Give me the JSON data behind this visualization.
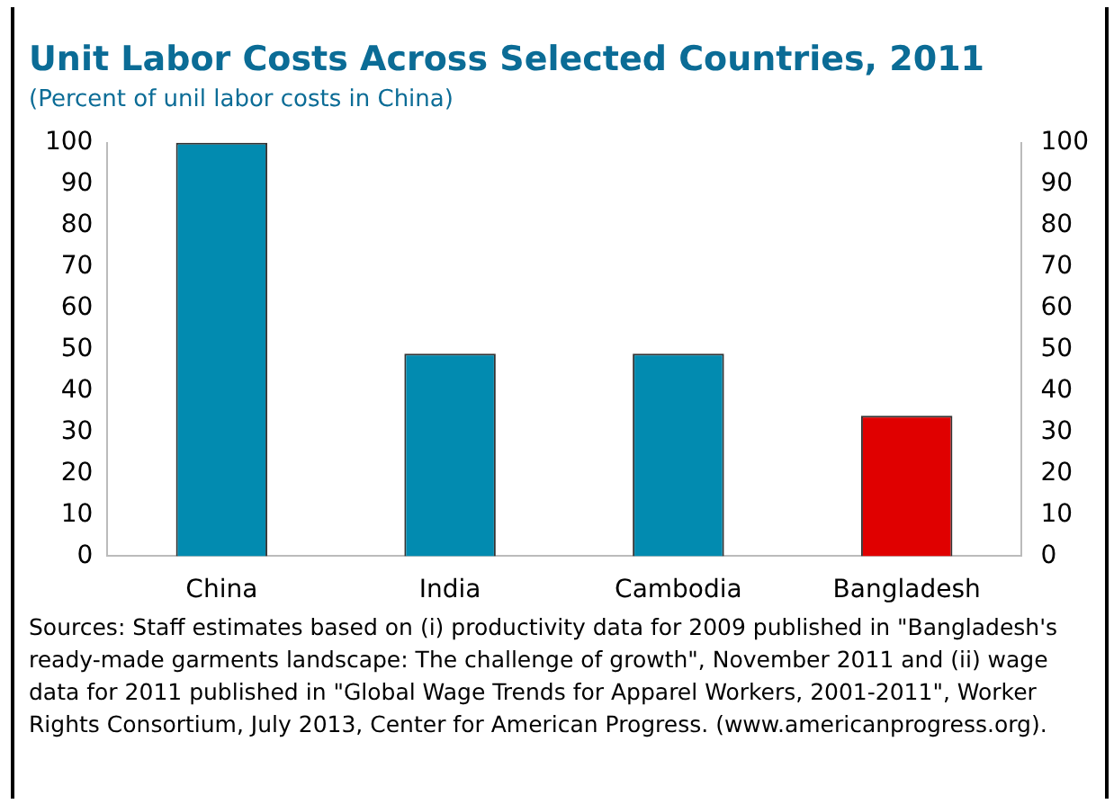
{
  "chart_data": {
    "type": "bar",
    "title": "Unit Labor Costs Across Selected Countries, 2011",
    "subtitle": "(Percent of unil labor costs in China)",
    "categories": [
      "China",
      "India",
      "Cambodia",
      "Bangladesh"
    ],
    "values": [
      100,
      49,
      49,
      34
    ],
    "colors": [
      "#028bb0",
      "#028bb0",
      "#028bb0",
      "#e00000"
    ],
    "ylim": [
      0,
      100
    ],
    "yticks": [
      0,
      10,
      20,
      30,
      40,
      50,
      60,
      70,
      80,
      90,
      100
    ],
    "y2lim": [
      0,
      100
    ],
    "y2ticks": [
      0,
      10,
      20,
      30,
      40,
      50,
      60,
      70,
      80,
      90,
      100
    ],
    "grid": false,
    "annotations": [
      "Sources: Staff estimates based on (i) productivity data for 2009 published in \"Bangladesh's ready-made garments landscape: The challenge of growth\", November 2011 and (ii) wage data for 2011 published in \"Global Wage Trends for Apparel Workers, 2001-2011\", Worker Rights Consortium, July 2013, Center for American Progress. (www.americanprogress.org)."
    ]
  }
}
